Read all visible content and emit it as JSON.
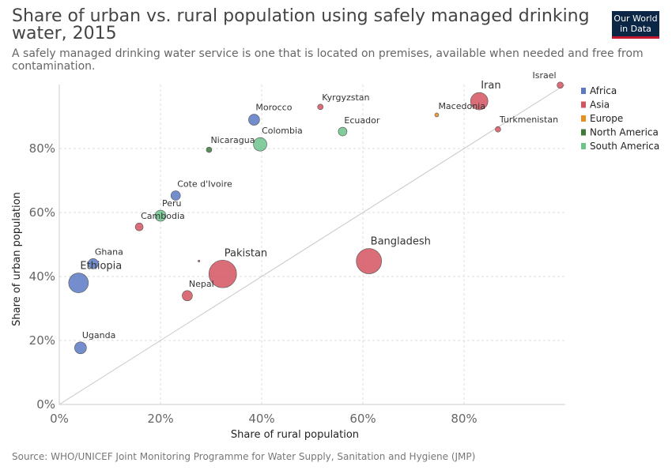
{
  "title": "Share of urban vs. rural population using safely managed drinking water, 2015",
  "subtitle": "A safely managed drinking water service is one that is located on premises, available when needed and free from contamination.",
  "logo": {
    "line1": "Our World",
    "line2": "in Data"
  },
  "source": "Source: WHO/UNICEF Joint Monitoring Programme for Water Supply, Sanitation and Hygiene (JMP)",
  "colors": {
    "Africa": "#5b79c4",
    "Asia": "#d3535f",
    "Europe": "#e88f20",
    "North America": "#3e7a3a",
    "South America": "#6cc38c"
  },
  "chart_data": {
    "type": "scatter",
    "title": "Share of urban vs. rural population using safely managed drinking water, 2015",
    "xlabel": "Share of rural population",
    "ylabel": "Share of urban population",
    "xlim": [
      0,
      100
    ],
    "ylim": [
      0,
      100
    ],
    "x_ticks": [
      "0%",
      "20%",
      "40%",
      "60%",
      "80%"
    ],
    "y_ticks": [
      "0%",
      "20%",
      "40%",
      "60%",
      "80%"
    ],
    "grid": true,
    "legend_position": "right",
    "legend": [
      "Africa",
      "Asia",
      "Europe",
      "North America",
      "South America"
    ],
    "reference_line": "y = x",
    "points": [
      {
        "label": "Ethiopia",
        "continent": "Africa",
        "x": 3.8,
        "y": 38.0,
        "size": 12.5
      },
      {
        "label": "Uganda",
        "continent": "Africa",
        "x": 4.2,
        "y": 17.7,
        "size": 7.5
      },
      {
        "label": "Ghana",
        "continent": "Africa",
        "x": 6.7,
        "y": 44.0,
        "size": 6.5
      },
      {
        "label": "Cote d'Ivoire",
        "continent": "Africa",
        "x": 23.0,
        "y": 65.3,
        "size": 6
      },
      {
        "label": "Morocco",
        "continent": "Africa",
        "x": 38.5,
        "y": 89.0,
        "size": 7
      },
      {
        "label": "Cambodia",
        "continent": "Asia",
        "x": 15.8,
        "y": 55.5,
        "size": 5
      },
      {
        "label": "",
        "continent": "Asia",
        "x": 27.6,
        "y": 44.8,
        "size": 1.2
      },
      {
        "label": "Nepal",
        "continent": "Asia",
        "x": 25.3,
        "y": 34.0,
        "size": 6.5
      },
      {
        "label": "Pakistan",
        "continent": "Asia",
        "x": 32.3,
        "y": 40.8,
        "size": 17.5
      },
      {
        "label": "Bangladesh",
        "continent": "Asia",
        "x": 61.2,
        "y": 44.8,
        "size": 16
      },
      {
        "label": "Kyrgyzstan",
        "continent": "Asia",
        "x": 51.6,
        "y": 93.0,
        "size": 3.5
      },
      {
        "label": "Iran",
        "continent": "Asia",
        "x": 83.0,
        "y": 94.8,
        "size": 11
      },
      {
        "label": "Turkmenistan",
        "continent": "Asia",
        "x": 86.7,
        "y": 86.0,
        "size": 3.5
      },
      {
        "label": "Israel",
        "continent": "Asia",
        "x": 99.0,
        "y": 99.8,
        "size": 4
      },
      {
        "label": "Macedonia",
        "continent": "Europe",
        "x": 74.6,
        "y": 90.5,
        "size": 2.5
      },
      {
        "label": "Nicaragua",
        "continent": "North America",
        "x": 29.6,
        "y": 79.6,
        "size": 3.5
      },
      {
        "label": "Peru",
        "continent": "South America",
        "x": 20.0,
        "y": 59.0,
        "size": 7
      },
      {
        "label": "Colombia",
        "continent": "South America",
        "x": 39.7,
        "y": 81.3,
        "size": 8.5
      },
      {
        "label": "Ecuador",
        "continent": "South America",
        "x": 56.0,
        "y": 85.3,
        "size": 5.5
      }
    ]
  }
}
